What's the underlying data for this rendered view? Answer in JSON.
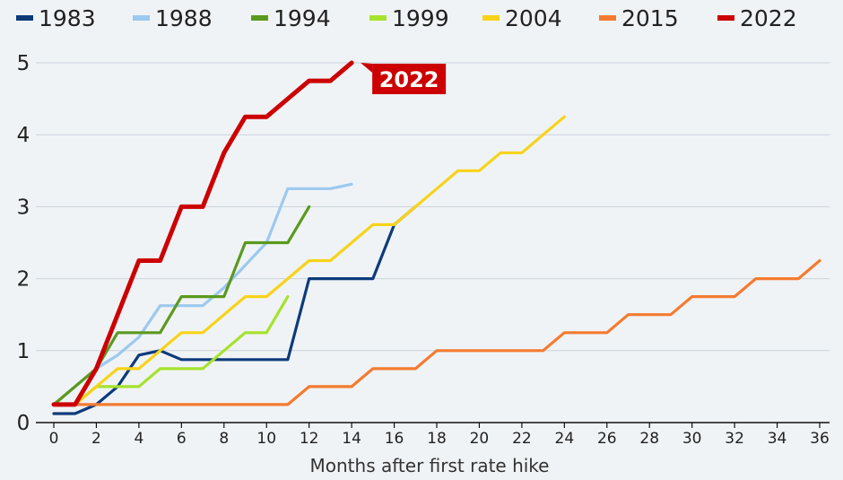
{
  "chart_data": {
    "type": "line",
    "xlabel": "Months after first rate hike",
    "ylabel": "",
    "xlim": [
      0,
      36
    ],
    "ylim": [
      0,
      5
    ],
    "x_ticks": [
      0,
      2,
      4,
      6,
      8,
      10,
      12,
      14,
      16,
      18,
      20,
      22,
      24,
      26,
      28,
      30,
      32,
      34,
      36
    ],
    "y_ticks": [
      0,
      1,
      2,
      3,
      4,
      5
    ],
    "grid": "horizontal",
    "legend_position": "top",
    "annotation": {
      "text": "2022",
      "series": "2022",
      "color": "#cc0000"
    },
    "series": [
      {
        "name": "1983",
        "color": "#0d3b7a",
        "x": [
          0,
          1,
          2,
          3,
          4,
          5,
          6,
          7,
          8,
          9,
          10,
          11,
          12,
          13,
          14,
          15,
          16,
          17
        ],
        "y": [
          0.125,
          0.125,
          0.25,
          0.5,
          0.9375,
          1.0,
          0.875,
          0.875,
          0.875,
          0.875,
          0.875,
          0.875,
          2.0,
          2.0,
          2.0,
          2.0,
          2.75,
          3.0
        ]
      },
      {
        "name": "1988",
        "color": "#9cc9ef",
        "x": [
          0,
          1,
          2,
          3,
          4,
          5,
          6,
          7,
          8,
          9,
          10,
          11,
          12,
          13,
          14
        ],
        "y": [
          0.25,
          0.5,
          0.75,
          0.9375,
          1.1875,
          1.625,
          1.625,
          1.625,
          1.875,
          2.1875,
          2.5,
          3.25,
          3.25,
          3.25,
          3.3125
        ]
      },
      {
        "name": "1994",
        "color": "#5a9a1e",
        "x": [
          0,
          1,
          2,
          3,
          4,
          5,
          6,
          7,
          8,
          9,
          10,
          11,
          12
        ],
        "y": [
          0.25,
          0.5,
          0.75,
          1.25,
          1.25,
          1.25,
          1.75,
          1.75,
          1.75,
          2.5,
          2.5,
          2.5,
          3.0
        ]
      },
      {
        "name": "1999",
        "color": "#a6e22e",
        "x": [
          0,
          1,
          2,
          3,
          4,
          5,
          6,
          7,
          8,
          9,
          10,
          11
        ],
        "y": [
          0.25,
          0.25,
          0.5,
          0.5,
          0.5,
          0.75,
          0.75,
          0.75,
          1.0,
          1.25,
          1.25,
          1.75
        ]
      },
      {
        "name": "2004",
        "color": "#f7d31a",
        "x": [
          0,
          1,
          2,
          3,
          4,
          5,
          6,
          7,
          8,
          9,
          10,
          11,
          12,
          13,
          14,
          15,
          16,
          17,
          18,
          19,
          20,
          21,
          22,
          23,
          24
        ],
        "y": [
          0.25,
          0.25,
          0.5,
          0.75,
          0.75,
          1.0,
          1.25,
          1.25,
          1.5,
          1.75,
          1.75,
          2.0,
          2.25,
          2.25,
          2.5,
          2.75,
          2.75,
          3.0,
          3.25,
          3.5,
          3.5,
          3.75,
          3.75,
          4.0,
          4.25
        ]
      },
      {
        "name": "2015",
        "color": "#f47b30",
        "x": [
          0,
          1,
          2,
          3,
          4,
          5,
          6,
          7,
          8,
          9,
          10,
          11,
          12,
          13,
          14,
          15,
          16,
          17,
          18,
          19,
          20,
          21,
          22,
          23,
          24,
          25,
          26,
          27,
          28,
          29,
          30,
          31,
          32,
          33,
          34,
          35,
          36
        ],
        "y": [
          0.25,
          0.25,
          0.25,
          0.25,
          0.25,
          0.25,
          0.25,
          0.25,
          0.25,
          0.25,
          0.25,
          0.25,
          0.5,
          0.5,
          0.5,
          0.75,
          0.75,
          0.75,
          1.0,
          1.0,
          1.0,
          1.0,
          1.0,
          1.0,
          1.25,
          1.25,
          1.25,
          1.5,
          1.5,
          1.5,
          1.75,
          1.75,
          1.75,
          2.0,
          2.0,
          2.0,
          2.25
        ]
      },
      {
        "name": "2022",
        "color": "#cc0000",
        "x": [
          0,
          1,
          2,
          3,
          4,
          5,
          6,
          7,
          8,
          9,
          10,
          11,
          12,
          13,
          14
        ],
        "y": [
          0.25,
          0.25,
          0.75,
          1.5,
          2.25,
          2.25,
          3.0,
          3.0,
          3.75,
          4.25,
          4.25,
          4.5,
          4.75,
          4.75,
          5.0
        ]
      }
    ]
  }
}
